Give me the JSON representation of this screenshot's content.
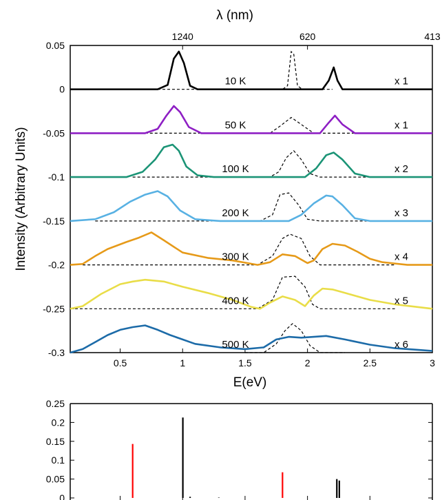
{
  "chart_data": [
    {
      "type": "line",
      "title": "",
      "top_axis_label": "λ (nm)",
      "top_ticks": [
        {
          "label": "1240",
          "x": 1.0
        },
        {
          "label": "620",
          "x": 2.0
        },
        {
          "label": "413",
          "x": 3.0
        }
      ],
      "xlabel": "E(eV)",
      "ylabel": "Intensity (Arbitrary Units)",
      "xlim": [
        0.1,
        3.0
      ],
      "ylim": [
        -0.3,
        0.05
      ],
      "x_ticks": [
        {
          "value": 0.5,
          "label": "0.5"
        },
        {
          "value": 1.0,
          "label": "1"
        },
        {
          "value": 1.5,
          "label": "1.5"
        },
        {
          "value": 2.0,
          "label": "2"
        },
        {
          "value": 2.5,
          "label": "2.5"
        },
        {
          "value": 3.0,
          "label": "3"
        }
      ],
      "y_ticks": [
        {
          "value": 0.05,
          "label": "0.05"
        },
        {
          "value": 0,
          "label": "0"
        },
        {
          "value": -0.05,
          "label": "-0.05"
        },
        {
          "value": -0.1,
          "label": "-0.1"
        },
        {
          "value": -0.15,
          "label": "-0.15"
        },
        {
          "value": -0.2,
          "label": "-0.2"
        },
        {
          "value": -0.25,
          "label": "-0.25"
        },
        {
          "value": -0.3,
          "label": "-0.3"
        }
      ],
      "grid": false,
      "series": [
        {
          "name": "10 K",
          "scale": "x 1",
          "color": "#000000",
          "offset": 0,
          "points": [
            [
              0.1,
              0
            ],
            [
              0.8,
              0
            ],
            [
              0.88,
              0.005
            ],
            [
              0.93,
              0.035
            ],
            [
              0.97,
              0.043
            ],
            [
              1.01,
              0.03
            ],
            [
              1.06,
              0.004
            ],
            [
              1.12,
              0
            ],
            [
              2.12,
              0
            ],
            [
              2.17,
              0.01
            ],
            [
              2.21,
              0.025
            ],
            [
              2.24,
              0.01
            ],
            [
              2.28,
              0
            ],
            [
              3.0,
              0
            ]
          ],
          "dashed": [
            [
              0.8,
              0
            ],
            [
              1.8,
              0
            ],
            [
              1.84,
              0.004
            ],
            [
              1.87,
              0.043
            ],
            [
              1.89,
              0.04
            ],
            [
              1.92,
              0.004
            ],
            [
              1.96,
              0
            ],
            [
              2.2,
              0
            ]
          ]
        },
        {
          "name": "50 K",
          "scale": "x 1",
          "color": "#8e1fc4",
          "offset": -0.05,
          "points": [
            [
              0.1,
              -0.05
            ],
            [
              0.7,
              -0.05
            ],
            [
              0.8,
              -0.045
            ],
            [
              0.87,
              -0.03
            ],
            [
              0.93,
              -0.019
            ],
            [
              0.98,
              -0.026
            ],
            [
              1.05,
              -0.043
            ],
            [
              1.15,
              -0.05
            ],
            [
              2.1,
              -0.05
            ],
            [
              2.17,
              -0.038
            ],
            [
              2.22,
              -0.03
            ],
            [
              2.28,
              -0.04
            ],
            [
              2.38,
              -0.05
            ],
            [
              3.0,
              -0.05
            ]
          ],
          "dashed": [
            [
              0.7,
              -0.05
            ],
            [
              1.7,
              -0.05
            ],
            [
              1.78,
              -0.042
            ],
            [
              1.87,
              -0.032
            ],
            [
              1.95,
              -0.04
            ],
            [
              2.05,
              -0.05
            ],
            [
              2.4,
              -0.05
            ]
          ]
        },
        {
          "name": "100 K",
          "scale": "x 2",
          "color": "#1b9476",
          "offset": -0.1,
          "points": [
            [
              0.1,
              -0.1
            ],
            [
              0.55,
              -0.1
            ],
            [
              0.68,
              -0.094
            ],
            [
              0.78,
              -0.08
            ],
            [
              0.85,
              -0.066
            ],
            [
              0.92,
              -0.063
            ],
            [
              0.97,
              -0.07
            ],
            [
              1.03,
              -0.088
            ],
            [
              1.12,
              -0.098
            ],
            [
              1.25,
              -0.1
            ],
            [
              1.98,
              -0.1
            ],
            [
              2.07,
              -0.09
            ],
            [
              2.15,
              -0.075
            ],
            [
              2.21,
              -0.072
            ],
            [
              2.28,
              -0.08
            ],
            [
              2.38,
              -0.096
            ],
            [
              2.5,
              -0.1
            ],
            [
              3.0,
              -0.1
            ]
          ],
          "dashed": [
            [
              0.6,
              -0.1
            ],
            [
              1.7,
              -0.1
            ],
            [
              1.77,
              -0.094
            ],
            [
              1.83,
              -0.078
            ],
            [
              1.89,
              -0.07
            ],
            [
              1.95,
              -0.08
            ],
            [
              2.02,
              -0.096
            ],
            [
              2.1,
              -0.1
            ],
            [
              2.5,
              -0.1
            ]
          ]
        },
        {
          "name": "200 K",
          "scale": "x 3",
          "color": "#58b1e3",
          "offset": -0.15,
          "points": [
            [
              0.1,
              -0.15
            ],
            [
              0.3,
              -0.148
            ],
            [
              0.45,
              -0.14
            ],
            [
              0.58,
              -0.128
            ],
            [
              0.7,
              -0.12
            ],
            [
              0.8,
              -0.116
            ],
            [
              0.88,
              -0.122
            ],
            [
              0.98,
              -0.138
            ],
            [
              1.1,
              -0.148
            ],
            [
              1.3,
              -0.15
            ],
            [
              1.85,
              -0.15
            ],
            [
              1.95,
              -0.143
            ],
            [
              2.05,
              -0.13
            ],
            [
              2.15,
              -0.121
            ],
            [
              2.2,
              -0.122
            ],
            [
              2.28,
              -0.132
            ],
            [
              2.38,
              -0.147
            ],
            [
              2.5,
              -0.15
            ],
            [
              3.0,
              -0.15
            ]
          ],
          "dashed": [
            [
              0.3,
              -0.15
            ],
            [
              1.62,
              -0.15
            ],
            [
              1.72,
              -0.143
            ],
            [
              1.78,
              -0.12
            ],
            [
              1.85,
              -0.118
            ],
            [
              1.93,
              -0.132
            ],
            [
              2.0,
              -0.148
            ],
            [
              2.1,
              -0.15
            ],
            [
              2.7,
              -0.15
            ]
          ]
        },
        {
          "name": "300 K",
          "scale": "x 4",
          "color": "#e69a19",
          "offset": -0.2,
          "points": [
            [
              0.1,
              -0.2
            ],
            [
              0.2,
              -0.199
            ],
            [
              0.3,
              -0.19
            ],
            [
              0.4,
              -0.182
            ],
            [
              0.55,
              -0.174
            ],
            [
              0.65,
              -0.169
            ],
            [
              0.75,
              -0.163
            ],
            [
              0.85,
              -0.172
            ],
            [
              1.0,
              -0.186
            ],
            [
              1.2,
              -0.192
            ],
            [
              1.4,
              -0.195
            ],
            [
              1.6,
              -0.2
            ],
            [
              1.7,
              -0.197
            ],
            [
              1.8,
              -0.188
            ],
            [
              1.9,
              -0.19
            ],
            [
              2.0,
              -0.198
            ],
            [
              2.05,
              -0.195
            ],
            [
              2.12,
              -0.182
            ],
            [
              2.2,
              -0.176
            ],
            [
              2.3,
              -0.178
            ],
            [
              2.4,
              -0.185
            ],
            [
              2.5,
              -0.193
            ],
            [
              2.6,
              -0.197
            ],
            [
              2.8,
              -0.2
            ],
            [
              3.0,
              -0.2
            ]
          ],
          "dashed": [
            [
              0.2,
              -0.2
            ],
            [
              1.6,
              -0.2
            ],
            [
              1.72,
              -0.19
            ],
            [
              1.8,
              -0.17
            ],
            [
              1.86,
              -0.165
            ],
            [
              1.95,
              -0.17
            ],
            [
              2.02,
              -0.19
            ],
            [
              2.1,
              -0.2
            ],
            [
              2.7,
              -0.2
            ]
          ]
        },
        {
          "name": "400 K",
          "scale": "x 5",
          "color": "#e9dd48",
          "offset": -0.25,
          "points": [
            [
              0.1,
              -0.25
            ],
            [
              0.2,
              -0.247
            ],
            [
              0.35,
              -0.233
            ],
            [
              0.5,
              -0.222
            ],
            [
              0.6,
              -0.219
            ],
            [
              0.7,
              -0.217
            ],
            [
              0.85,
              -0.219
            ],
            [
              1.0,
              -0.225
            ],
            [
              1.2,
              -0.232
            ],
            [
              1.4,
              -0.24
            ],
            [
              1.55,
              -0.248
            ],
            [
              1.62,
              -0.25
            ],
            [
              1.7,
              -0.243
            ],
            [
              1.8,
              -0.236
            ],
            [
              1.9,
              -0.24
            ],
            [
              1.98,
              -0.247
            ],
            [
              2.05,
              -0.235
            ],
            [
              2.12,
              -0.227
            ],
            [
              2.2,
              -0.228
            ],
            [
              2.3,
              -0.232
            ],
            [
              2.5,
              -0.24
            ],
            [
              2.7,
              -0.245
            ],
            [
              3.0,
              -0.25
            ]
          ],
          "dashed": [
            [
              0.1,
              -0.25
            ],
            [
              1.6,
              -0.25
            ],
            [
              1.72,
              -0.24
            ],
            [
              1.8,
              -0.214
            ],
            [
              1.9,
              -0.213
            ],
            [
              1.98,
              -0.225
            ],
            [
              2.04,
              -0.245
            ],
            [
              2.1,
              -0.25
            ],
            [
              2.7,
              -0.25
            ]
          ]
        },
        {
          "name": "500 K",
          "scale": "x 6",
          "color": "#1c6ba8",
          "offset": -0.3,
          "points": [
            [
              0.1,
              -0.3
            ],
            [
              0.2,
              -0.296
            ],
            [
              0.3,
              -0.288
            ],
            [
              0.4,
              -0.28
            ],
            [
              0.5,
              -0.274
            ],
            [
              0.6,
              -0.271
            ],
            [
              0.7,
              -0.269
            ],
            [
              0.8,
              -0.274
            ],
            [
              0.9,
              -0.28
            ],
            [
              1.0,
              -0.285
            ],
            [
              1.1,
              -0.29
            ],
            [
              1.3,
              -0.294
            ],
            [
              1.5,
              -0.296
            ],
            [
              1.65,
              -0.294
            ],
            [
              1.75,
              -0.285
            ],
            [
              1.85,
              -0.282
            ],
            [
              1.95,
              -0.283
            ],
            [
              2.05,
              -0.282
            ],
            [
              2.15,
              -0.281
            ],
            [
              2.3,
              -0.285
            ],
            [
              2.5,
              -0.291
            ],
            [
              2.7,
              -0.295
            ],
            [
              2.9,
              -0.297
            ],
            [
              3.0,
              -0.298
            ]
          ],
          "dashed": [
            [
              1.5,
              -0.3
            ],
            [
              1.65,
              -0.3
            ],
            [
              1.75,
              -0.29
            ],
            [
              1.82,
              -0.275
            ],
            [
              1.88,
              -0.267
            ],
            [
              1.95,
              -0.275
            ],
            [
              2.02,
              -0.292
            ],
            [
              2.1,
              -0.3
            ],
            [
              2.3,
              -0.3
            ]
          ]
        }
      ]
    },
    {
      "type": "bar",
      "title": "",
      "xlim": [
        0.1,
        3.0
      ],
      "ylim": [
        0,
        0.25
      ],
      "y_ticks": [
        {
          "value": 0.25,
          "label": "0.25"
        },
        {
          "value": 0.2,
          "label": "0.2"
        },
        {
          "value": 0.15,
          "label": "0.15"
        },
        {
          "value": 0.1,
          "label": "0.1"
        },
        {
          "value": 0.05,
          "label": "0.05"
        },
        {
          "value": 0,
          "label": "0"
        }
      ],
      "grid": false,
      "bars": [
        {
          "x": 0.6,
          "value": 0.143,
          "color": "#ff0000"
        },
        {
          "x": 1.002,
          "value": 0.213,
          "color": "#000000"
        },
        {
          "x": 1.06,
          "value": 0.003,
          "color": "#000000"
        },
        {
          "x": 1.29,
          "value": 0.001,
          "color": "#000000"
        },
        {
          "x": 1.8,
          "value": 0.068,
          "color": "#ff0000"
        },
        {
          "x": 2.235,
          "value": 0.05,
          "color": "#000000"
        },
        {
          "x": 2.255,
          "value": 0.046,
          "color": "#000000"
        }
      ]
    }
  ]
}
